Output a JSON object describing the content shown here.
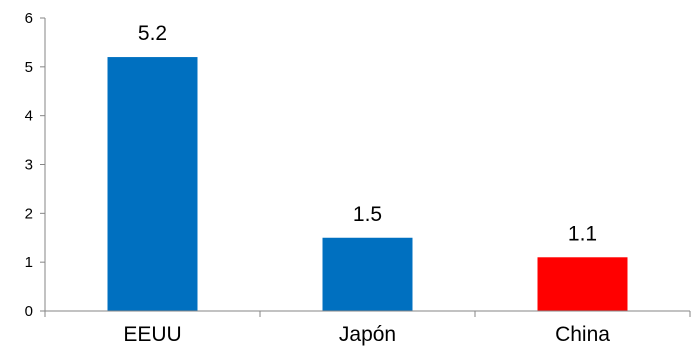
{
  "chart_data": {
    "type": "bar",
    "categories": [
      "EEUU",
      "Japón",
      "China"
    ],
    "values": [
      5.2,
      1.5,
      1.1
    ],
    "value_labels": [
      "5.2",
      "1.5",
      "1.1"
    ],
    "bar_colors": [
      "#0070C0",
      "#0070C0",
      "#FF0000"
    ],
    "title": "",
    "xlabel": "",
    "ylabel": "",
    "ylim": [
      0,
      6
    ],
    "yticks": [
      0,
      1,
      2,
      3,
      4,
      5,
      6
    ],
    "ytick_labels": [
      "0",
      "1",
      "2",
      "3",
      "4",
      "5",
      "6"
    ],
    "grid": false,
    "legend": "none"
  },
  "colors": {
    "axis": "#868686",
    "text": "#000000"
  }
}
